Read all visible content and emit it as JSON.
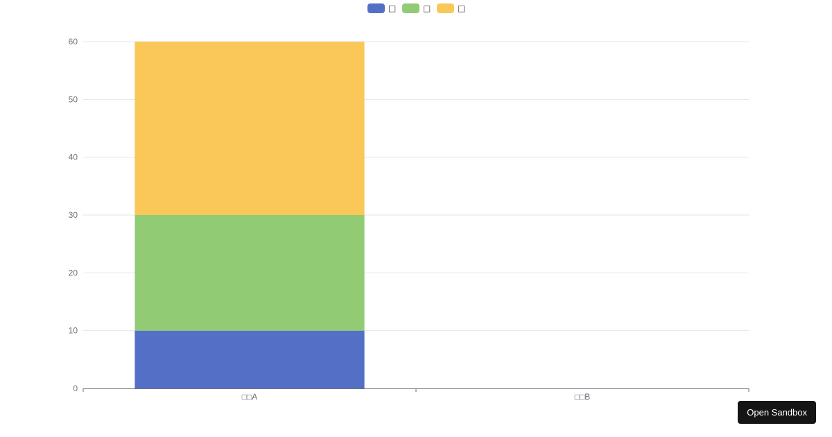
{
  "chart_data": {
    "type": "bar",
    "stacked": true,
    "categories": [
      "□□A",
      "□□B"
    ],
    "series": [
      {
        "name": "□",
        "values": [
          10,
          0
        ],
        "color": "#5470c6"
      },
      {
        "name": "□",
        "values": [
          20,
          0
        ],
        "color": "#91cc75"
      },
      {
        "name": "□",
        "values": [
          30,
          0
        ],
        "color": "#fac858"
      }
    ],
    "ylim": [
      0,
      60
    ],
    "yticks": [
      0,
      10,
      20,
      30,
      40,
      50,
      60
    ],
    "grid": true,
    "legend_position": "top-center"
  },
  "toolbar": {
    "open_sandbox_label": "Open Sandbox"
  }
}
